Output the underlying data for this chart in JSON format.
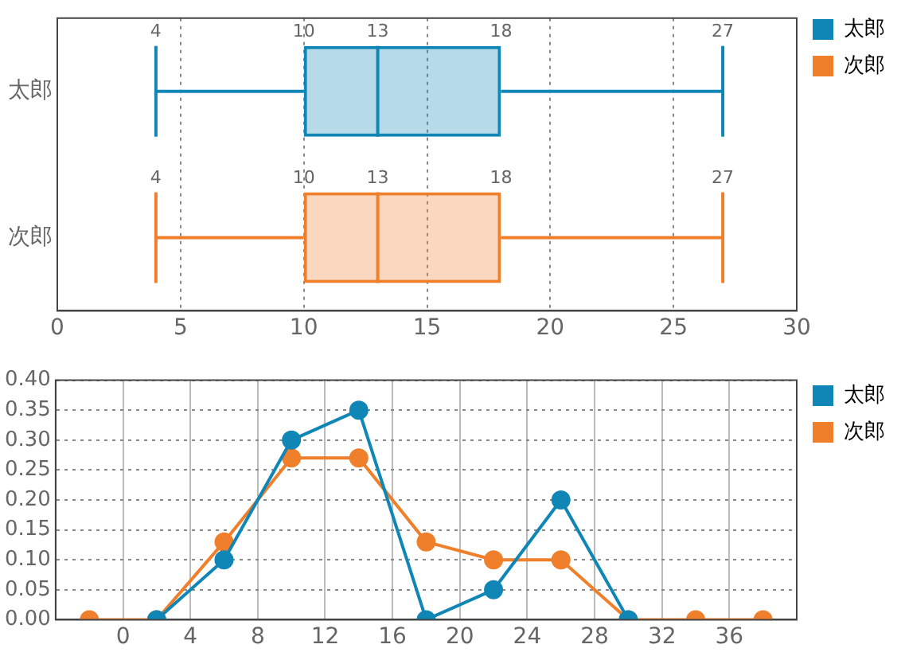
{
  "chart_data": [
    {
      "type": "box",
      "orientation": "horizontal",
      "categories": [
        "太郎",
        "次郎"
      ],
      "series": [
        {
          "name": "太郎",
          "color": "#0f86b6",
          "boxes": [
            {
              "low": 4,
              "q1": 10,
              "median": 13,
              "q3": 18,
              "high": 27
            },
            null
          ],
          "value_labels": [
            [
              "4",
              "10",
              "13",
              "18",
              "27"
            ],
            null
          ]
        },
        {
          "name": "次郎",
          "color": "#f07f2c",
          "boxes": [
            null,
            {
              "low": 4,
              "q1": 10,
              "median": 13,
              "q3": 18,
              "high": 27
            }
          ],
          "value_labels": [
            null,
            [
              "4",
              "10",
              "13",
              "18",
              "27"
            ]
          ]
        }
      ],
      "xlim": [
        0,
        30
      ],
      "xticks": [
        0,
        5,
        10,
        15,
        20,
        25,
        30
      ],
      "grid": "x",
      "legend": "top right"
    },
    {
      "type": "line",
      "x": [
        -2,
        2,
        6,
        10,
        14,
        18,
        22,
        26,
        30,
        34,
        38
      ],
      "series": [
        {
          "name": "太郎",
          "color": "#0f86b6",
          "values": [
            null,
            0,
            0.1,
            0.3,
            0.35,
            0,
            0.05,
            0.2,
            0,
            null,
            null
          ]
        },
        {
          "name": "次郎",
          "color": "#f07f2c",
          "values": [
            0,
            0,
            0.13,
            0.27,
            0.27,
            0.13,
            0.1,
            0.1,
            0,
            0,
            0
          ]
        }
      ],
      "xlim": [
        -4,
        40
      ],
      "xticks": [
        0,
        4,
        8,
        12,
        16,
        20,
        24,
        28,
        32,
        36
      ],
      "ylim": [
        0,
        0.4
      ],
      "yticks": [
        {
          "value": 0,
          "label": "0.00"
        },
        0.05,
        {
          "value": 0.1,
          "label": "0.10"
        },
        0.15,
        {
          "value": 0.2,
          "label": "0.20"
        },
        0.25,
        {
          "value": 0.3,
          "label": "0.30"
        },
        0.35,
        {
          "value": 0.4,
          "label": "0.40"
        }
      ],
      "grid": true,
      "legend": "top right",
      "marker": "circle",
      "line_style": "solid"
    }
  ]
}
